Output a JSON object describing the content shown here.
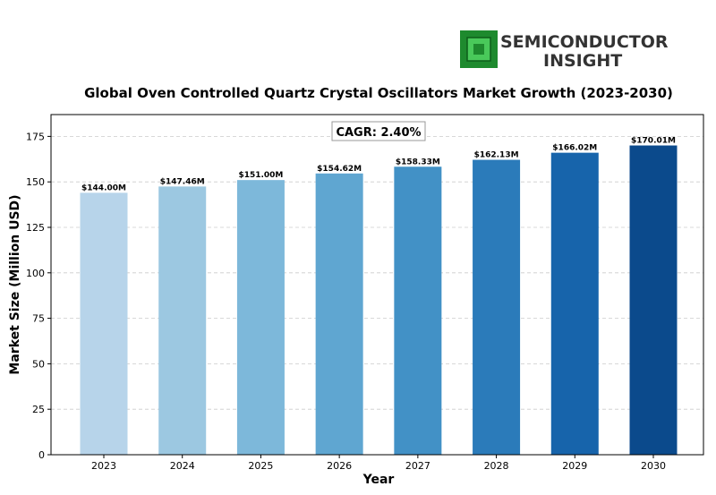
{
  "logo": {
    "line1": "SEMICONDUCTOR",
    "line2": "INSIGHT"
  },
  "chart_data": {
    "type": "bar",
    "title": "Global Oven Controlled Quartz Crystal Oscillators Market Growth (2023-2030)",
    "xlabel": "Year",
    "ylabel": "Market Size (Million USD)",
    "categories": [
      "2023",
      "2024",
      "2025",
      "2026",
      "2027",
      "2028",
      "2029",
      "2030"
    ],
    "values": [
      144.0,
      147.46,
      151.0,
      154.62,
      158.33,
      162.13,
      166.02,
      170.01
    ],
    "data_labels": [
      "$144.00M",
      "$147.46M",
      "$151.00M",
      "$154.62M",
      "$158.33M",
      "$162.13M",
      "$166.02M",
      "$170.01M"
    ],
    "colors": [
      "#b7d4ea",
      "#9cc8e1",
      "#7db8da",
      "#5fa6d1",
      "#4291c6",
      "#2b7bba",
      "#1764ab",
      "#0b4a8c"
    ],
    "ylim": [
      0,
      187
    ],
    "yticks": [
      0,
      25,
      50,
      75,
      100,
      125,
      150,
      175
    ],
    "grid": true,
    "annotation": "CAGR: 2.40%"
  }
}
